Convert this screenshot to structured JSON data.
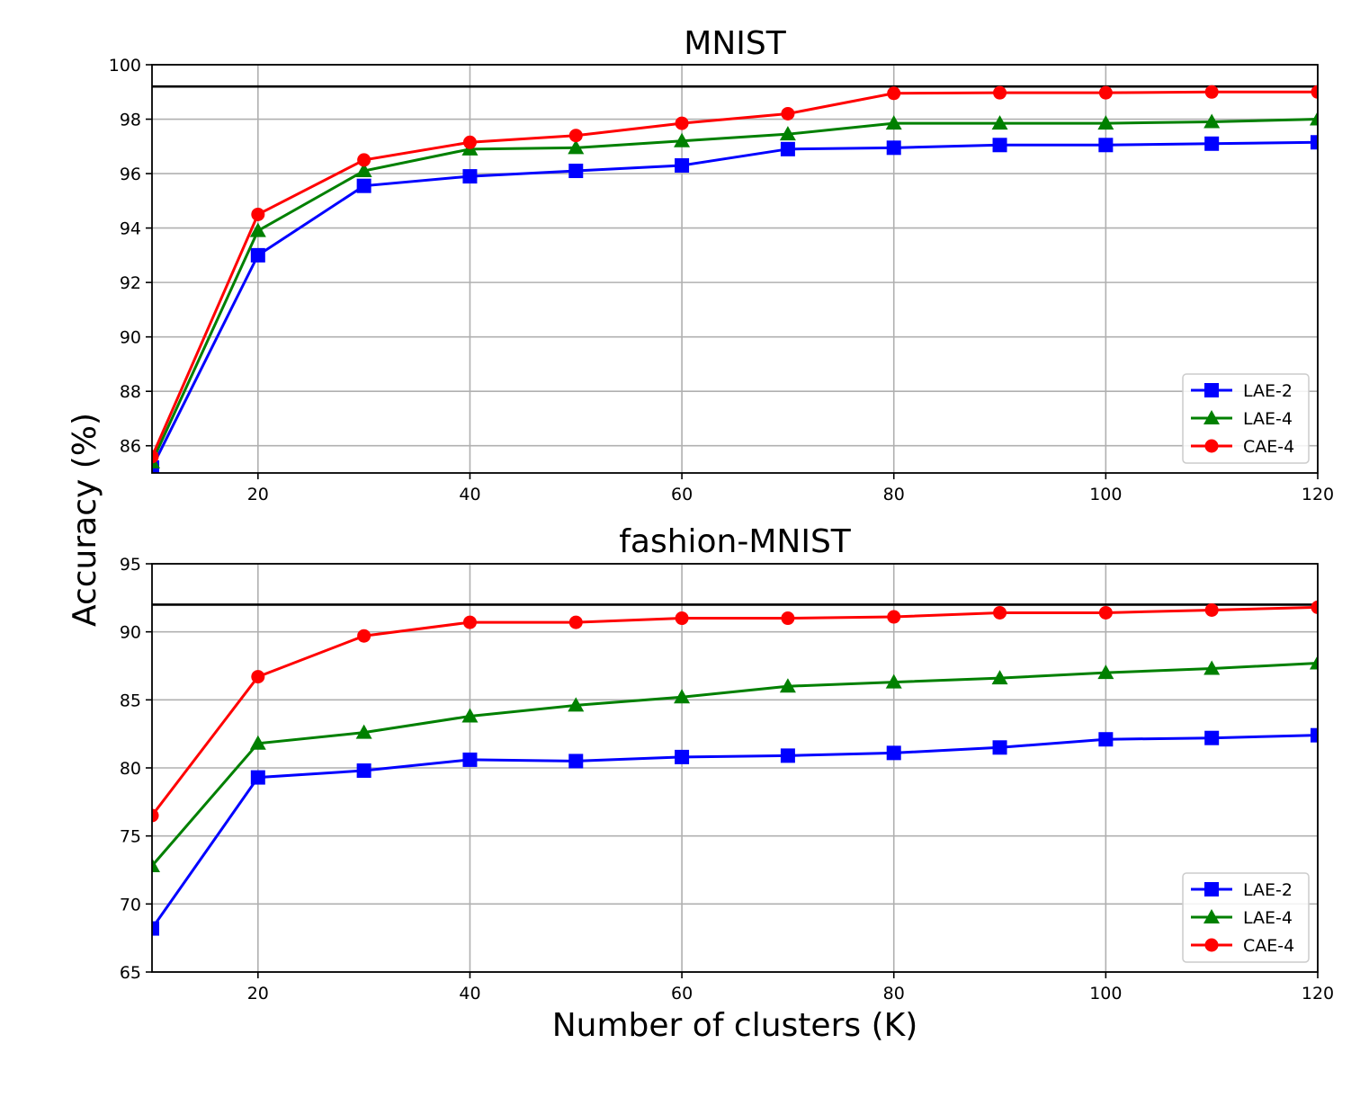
{
  "figure": {
    "ylabel": "Accuracy (%)",
    "xlabel": "Number of clusters (K)"
  },
  "chart_data": [
    {
      "type": "line",
      "title": "MNIST",
      "xlim": [
        10,
        120
      ],
      "ylim": [
        85,
        100
      ],
      "xticks": [
        20,
        40,
        60,
        80,
        100,
        120
      ],
      "yticks": [
        86,
        88,
        90,
        92,
        94,
        96,
        98,
        100
      ],
      "grid": true,
      "legend_position": "lower-right",
      "x": [
        10,
        20,
        30,
        40,
        50,
        60,
        70,
        80,
        90,
        100,
        110,
        120
      ],
      "reference_line": 99.2,
      "series": [
        {
          "name": "LAE-2",
          "color": "#0000ff",
          "marker": "square",
          "values": [
            85.2,
            93.0,
            95.55,
            95.9,
            96.1,
            96.3,
            96.9,
            96.95,
            97.05,
            97.05,
            97.1,
            97.15
          ]
        },
        {
          "name": "LAE-4",
          "color": "#008000",
          "marker": "triangle",
          "values": [
            85.4,
            93.9,
            96.1,
            96.9,
            96.95,
            97.2,
            97.45,
            97.85,
            97.85,
            97.85,
            97.9,
            98.0
          ]
        },
        {
          "name": "CAE-4",
          "color": "#ff0000",
          "marker": "circle",
          "values": [
            85.6,
            94.5,
            96.5,
            97.15,
            97.4,
            97.85,
            98.2,
            98.95,
            98.97,
            98.97,
            99.0,
            99.0
          ]
        }
      ]
    },
    {
      "type": "line",
      "title": "fashion-MNIST",
      "xlim": [
        10,
        120
      ],
      "ylim": [
        65,
        95
      ],
      "xticks": [
        20,
        40,
        60,
        80,
        100,
        120
      ],
      "yticks": [
        65,
        70,
        75,
        80,
        85,
        90,
        95
      ],
      "grid": true,
      "legend_position": "lower-right",
      "x": [
        10,
        20,
        30,
        40,
        50,
        60,
        70,
        80,
        90,
        100,
        110,
        120
      ],
      "reference_line": 92.0,
      "series": [
        {
          "name": "LAE-2",
          "color": "#0000ff",
          "marker": "square",
          "values": [
            68.2,
            79.3,
            79.8,
            80.6,
            80.5,
            80.8,
            80.9,
            81.1,
            81.5,
            82.1,
            82.2,
            82.4
          ]
        },
        {
          "name": "LAE-4",
          "color": "#008000",
          "marker": "triangle",
          "values": [
            72.8,
            81.8,
            82.6,
            83.8,
            84.6,
            85.2,
            86.0,
            86.3,
            86.6,
            87.0,
            87.3,
            87.7
          ]
        },
        {
          "name": "CAE-4",
          "color": "#ff0000",
          "marker": "circle",
          "values": [
            76.5,
            86.7,
            89.7,
            90.7,
            90.7,
            91.0,
            91.0,
            91.1,
            91.4,
            91.4,
            91.6,
            91.8
          ]
        }
      ]
    }
  ]
}
